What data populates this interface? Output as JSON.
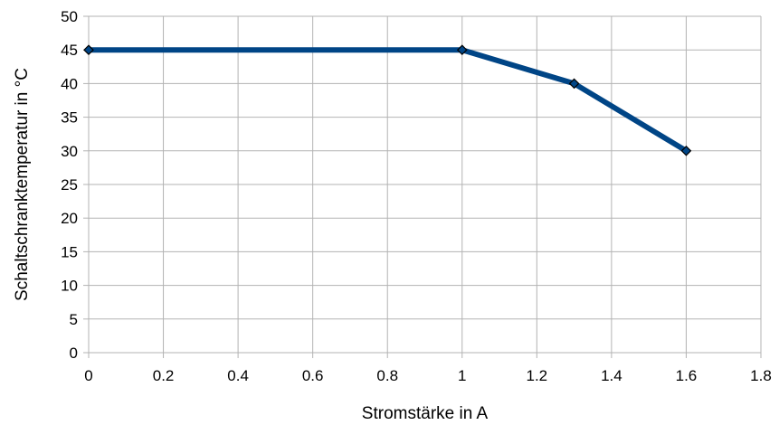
{
  "chart_data": {
    "type": "line",
    "xlabel": "Stromstärke in A",
    "ylabel": "Schaltschranktemperatur in °C",
    "xlim": [
      0,
      1.8
    ],
    "ylim": [
      0,
      50
    ],
    "x_ticks": [
      "0",
      "0.2",
      "0.4",
      "0.6",
      "0.8",
      "1",
      "1.2",
      "1.4",
      "1.6",
      "1.8"
    ],
    "y_ticks": [
      "0",
      "5",
      "10",
      "15",
      "20",
      "25",
      "30",
      "35",
      "40",
      "45",
      "50"
    ],
    "grid": true,
    "legend": false,
    "series": [
      {
        "x": [
          0,
          1,
          1.3,
          1.6
        ],
        "y": [
          45,
          45,
          40,
          30
        ],
        "color": "#004586",
        "marker": "diamond"
      }
    ]
  }
}
